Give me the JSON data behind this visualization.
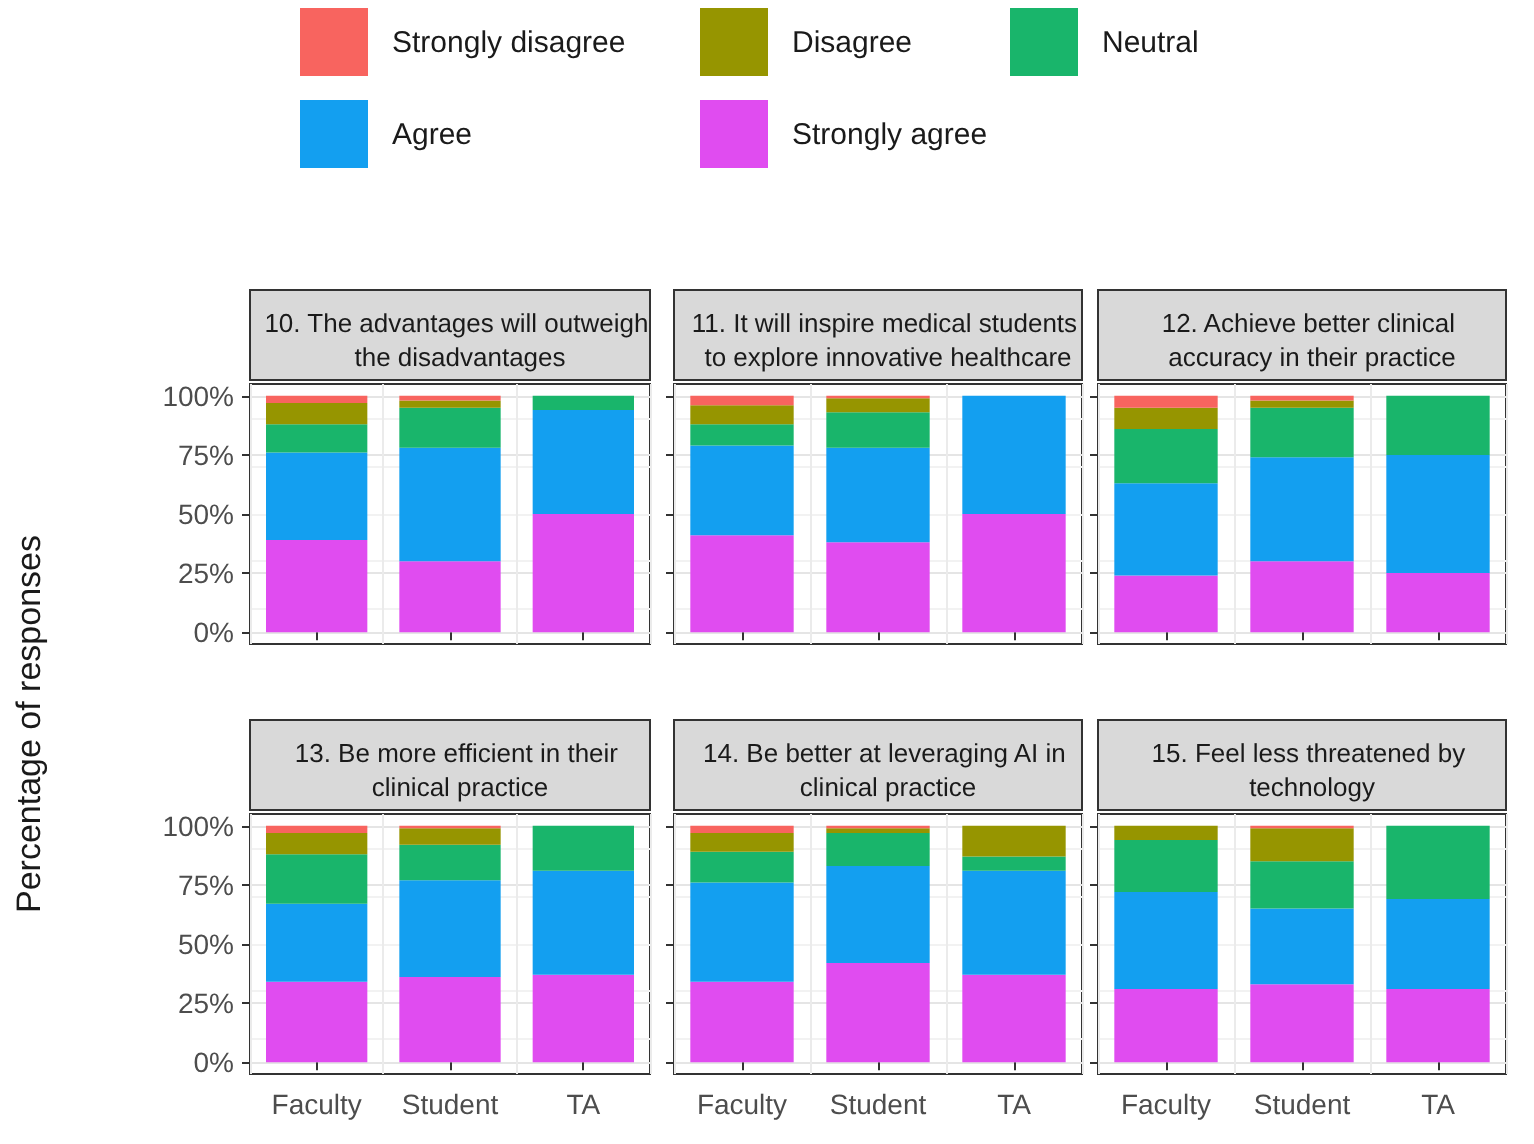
{
  "chart_data": [
    {
      "type": "bar",
      "stacked": true,
      "title": "10. The advantages will outweigh the disadvantages",
      "ylabel": "Percentage of responses",
      "categories": [
        "Faculty",
        "Student",
        "TA"
      ],
      "legend": "top",
      "grid": true,
      "tick_labels": "y",
      "ylim": [
        -5,
        105
      ],
      "yticks": [
        {
          "value": 0,
          "label": "0%"
        },
        {
          "value": 25,
          "label": "25%"
        },
        {
          "value": 50,
          "label": "50%"
        },
        {
          "value": 75,
          "label": "75%"
        },
        {
          "value": 100,
          "label": "100%"
        }
      ],
      "series": [
        {
          "name": "Strongly agree",
          "color": "#e04cf0",
          "values": [
            39,
            30,
            50
          ]
        },
        {
          "name": "Agree",
          "color": "#139ff0",
          "values": [
            37,
            48,
            44
          ]
        },
        {
          "name": "Neutral",
          "color": "#19b56b",
          "values": [
            12,
            17,
            6
          ]
        },
        {
          "name": "Disagree",
          "color": "#969500",
          "values": [
            9,
            3,
            0
          ]
        },
        {
          "name": "Strongly disagree",
          "color": "#f8645f",
          "values": [
            3,
            2,
            0
          ]
        }
      ]
    },
    {
      "type": "bar",
      "stacked": true,
      "title": "11. It will inspire medical students to explore innovative healthcare",
      "categories": [
        "Faculty",
        "Student",
        "TA"
      ],
      "grid": true,
      "tick_labels": false,
      "ylim": [
        -5,
        105
      ],
      "yticks": [
        {
          "value": 0,
          "label": "0%"
        },
        {
          "value": 25,
          "label": "25%"
        },
        {
          "value": 50,
          "label": "50%"
        },
        {
          "value": 75,
          "label": "75%"
        },
        {
          "value": 100,
          "label": "100%"
        }
      ],
      "series": [
        {
          "color": "#e04cf0",
          "values": [
            41,
            38,
            50
          ]
        },
        {
          "color": "#139ff0",
          "values": [
            38,
            40,
            50
          ]
        },
        {
          "color": "#19b56b",
          "values": [
            9,
            15,
            0
          ]
        },
        {
          "color": "#969500",
          "values": [
            8,
            6,
            0
          ]
        },
        {
          "color": "#f8645f",
          "values": [
            4,
            1,
            0
          ]
        }
      ]
    },
    {
      "type": "bar",
      "stacked": true,
      "title": "12. Achieve better clinical accuracy in their practice",
      "categories": [
        "Faculty",
        "Student",
        "TA"
      ],
      "grid": true,
      "tick_labels": false,
      "ylim": [
        -5,
        105
      ],
      "yticks": [
        {
          "value": 0,
          "label": "0%"
        },
        {
          "value": 25,
          "label": "25%"
        },
        {
          "value": 50,
          "label": "50%"
        },
        {
          "value": 75,
          "label": "75%"
        },
        {
          "value": 100,
          "label": "100%"
        }
      ],
      "series": [
        {
          "color": "#e04cf0",
          "values": [
            24,
            30,
            25
          ]
        },
        {
          "color": "#139ff0",
          "values": [
            39,
            44,
            50
          ]
        },
        {
          "color": "#19b56b",
          "values": [
            23,
            21,
            25
          ]
        },
        {
          "color": "#969500",
          "values": [
            9,
            3,
            0
          ]
        },
        {
          "color": "#f8645f",
          "values": [
            5,
            2,
            0
          ]
        }
      ]
    },
    {
      "type": "bar",
      "stacked": true,
      "title": "13. Be more efficient in their clinical practice",
      "categories": [
        "Faculty",
        "Student",
        "TA"
      ],
      "grid": true,
      "ylim": [
        -5,
        105
      ],
      "yticks": [
        {
          "value": 0,
          "label": "0%"
        },
        {
          "value": 25,
          "label": "25%"
        },
        {
          "value": 50,
          "label": "50%"
        },
        {
          "value": 75,
          "label": "75%"
        },
        {
          "value": 100,
          "label": "100%"
        }
      ],
      "series": [
        {
          "color": "#e04cf0",
          "values": [
            34,
            36,
            37
          ]
        },
        {
          "color": "#139ff0",
          "values": [
            33,
            41,
            44
          ]
        },
        {
          "color": "#19b56b",
          "values": [
            21,
            15,
            19
          ]
        },
        {
          "color": "#969500",
          "values": [
            9,
            7,
            0
          ]
        },
        {
          "color": "#f8645f",
          "values": [
            3,
            1,
            0
          ]
        }
      ]
    },
    {
      "type": "bar",
      "stacked": true,
      "title": "14. Be better at leveraging AI in clinical practice",
      "categories": [
        "Faculty",
        "Student",
        "TA"
      ],
      "grid": true,
      "tick_labels": "x",
      "ylim": [
        -5,
        105
      ],
      "yticks": [
        {
          "value": 0,
          "label": "0%"
        },
        {
          "value": 25,
          "label": "25%"
        },
        {
          "value": 50,
          "label": "50%"
        },
        {
          "value": 75,
          "label": "75%"
        },
        {
          "value": 100,
          "label": "100%"
        }
      ],
      "series": [
        {
          "color": "#e04cf0",
          "values": [
            34,
            42,
            37
          ]
        },
        {
          "color": "#139ff0",
          "values": [
            42,
            41,
            44
          ]
        },
        {
          "color": "#19b56b",
          "values": [
            13,
            14,
            6
          ]
        },
        {
          "color": "#969500",
          "values": [
            8,
            2,
            13
          ]
        },
        {
          "color": "#f8645f",
          "values": [
            3,
            1,
            0
          ]
        }
      ]
    },
    {
      "type": "bar",
      "stacked": true,
      "title": "15. Feel less threatened by technology",
      "categories": [
        "Faculty",
        "Student",
        "TA"
      ],
      "grid": true,
      "tick_labels": "x",
      "ylim": [
        -5,
        105
      ],
      "yticks": [
        {
          "value": 0,
          "label": "0%"
        },
        {
          "value": 25,
          "label": "25%"
        },
        {
          "value": 50,
          "label": "50%"
        },
        {
          "value": 75,
          "label": "75%"
        },
        {
          "value": 100,
          "label": "100%"
        }
      ],
      "series": [
        {
          "color": "#e04cf0",
          "values": [
            31,
            33,
            31
          ]
        },
        {
          "color": "#139ff0",
          "values": [
            41,
            32,
            38
          ]
        },
        {
          "color": "#19b56b",
          "values": [
            22,
            20,
            31
          ]
        },
        {
          "color": "#969500",
          "values": [
            6,
            14,
            0
          ]
        },
        {
          "color": "#f8645f",
          "values": [
            0,
            1,
            0
          ]
        }
      ]
    }
  ]
}
